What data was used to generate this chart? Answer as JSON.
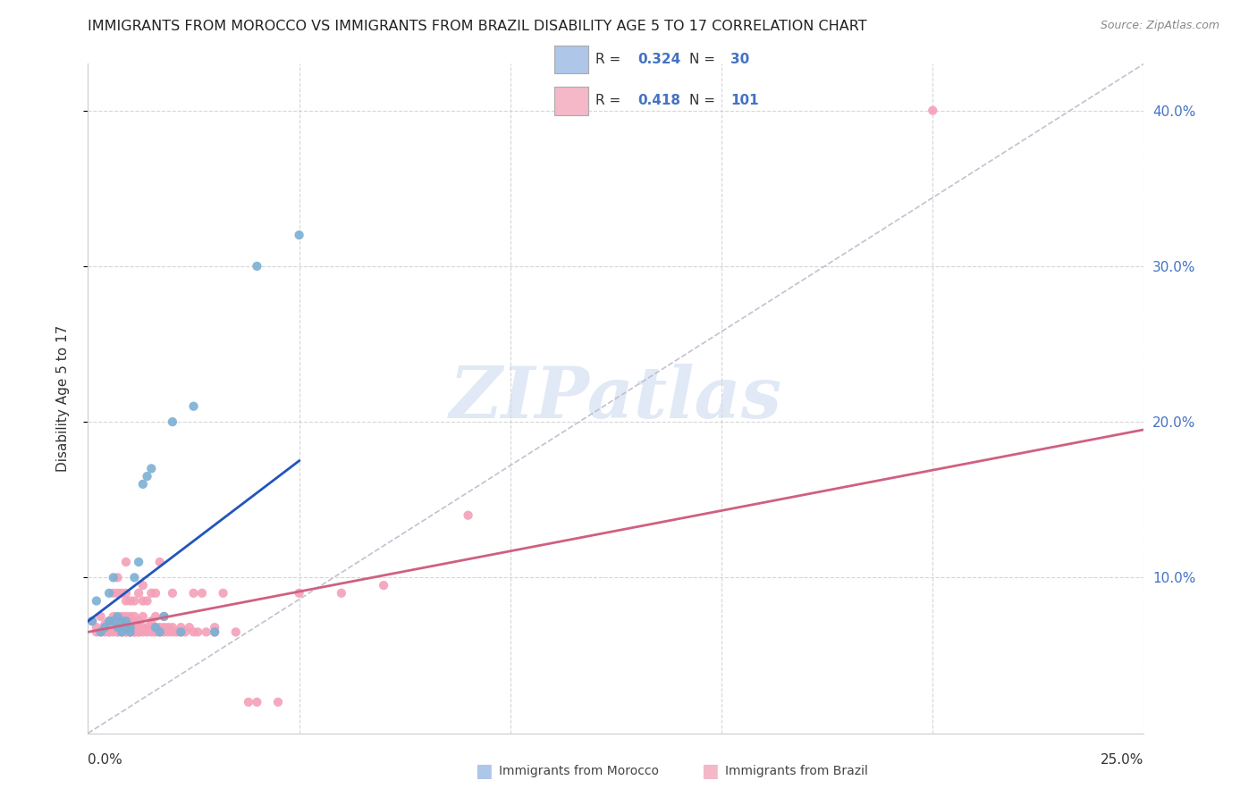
{
  "title": "IMMIGRANTS FROM MOROCCO VS IMMIGRANTS FROM BRAZIL DISABILITY AGE 5 TO 17 CORRELATION CHART",
  "source": "Source: ZipAtlas.com",
  "ylabel": "Disability Age 5 to 17",
  "watermark": "ZIPatlas",
  "morocco_color": "#7bafd4",
  "brazil_color": "#f4a0b8",
  "legend_morocco_color": "#aec6e8",
  "legend_brazil_color": "#f4b8c8",
  "regression_morocco_color": "#2255bb",
  "regression_brazil_color": "#d06080",
  "diagonal_color": "#bbbbcc",
  "R_morocco": 0.324,
  "N_morocco": 30,
  "R_brazil": 0.418,
  "N_brazil": 101,
  "xlim": [
    0.0,
    0.25
  ],
  "ylim": [
    0.0,
    0.43
  ],
  "yticks": [
    0.1,
    0.2,
    0.3,
    0.4
  ],
  "ytick_labels": [
    "10.0%",
    "20.0%",
    "30.0%",
    "40.0%"
  ],
  "morocco_reg_line": [
    [
      0.0,
      0.072
    ],
    [
      0.05,
      0.175
    ]
  ],
  "brazil_reg_line": [
    [
      0.0,
      0.065
    ],
    [
      0.25,
      0.195
    ]
  ],
  "diag_line": [
    [
      0.0,
      0.0
    ],
    [
      0.25,
      0.43
    ]
  ],
  "morocco_points": [
    [
      0.001,
      0.072
    ],
    [
      0.002,
      0.085
    ],
    [
      0.003,
      0.065
    ],
    [
      0.004,
      0.068
    ],
    [
      0.005,
      0.072
    ],
    [
      0.005,
      0.09
    ],
    [
      0.006,
      0.1
    ],
    [
      0.006,
      0.072
    ],
    [
      0.007,
      0.068
    ],
    [
      0.007,
      0.075
    ],
    [
      0.008,
      0.072
    ],
    [
      0.008,
      0.065
    ],
    [
      0.009,
      0.068
    ],
    [
      0.009,
      0.072
    ],
    [
      0.01,
      0.065
    ],
    [
      0.01,
      0.068
    ],
    [
      0.011,
      0.1
    ],
    [
      0.012,
      0.11
    ],
    [
      0.013,
      0.16
    ],
    [
      0.014,
      0.165
    ],
    [
      0.015,
      0.17
    ],
    [
      0.016,
      0.068
    ],
    [
      0.017,
      0.065
    ],
    [
      0.018,
      0.075
    ],
    [
      0.02,
      0.2
    ],
    [
      0.022,
      0.065
    ],
    [
      0.025,
      0.21
    ],
    [
      0.03,
      0.065
    ],
    [
      0.04,
      0.3
    ],
    [
      0.05,
      0.32
    ]
  ],
  "brazil_points": [
    [
      0.001,
      0.072
    ],
    [
      0.002,
      0.065
    ],
    [
      0.002,
      0.068
    ],
    [
      0.003,
      0.065
    ],
    [
      0.003,
      0.075
    ],
    [
      0.004,
      0.065
    ],
    [
      0.004,
      0.068
    ],
    [
      0.004,
      0.07
    ],
    [
      0.005,
      0.065
    ],
    [
      0.005,
      0.065
    ],
    [
      0.005,
      0.068
    ],
    [
      0.005,
      0.072
    ],
    [
      0.006,
      0.065
    ],
    [
      0.006,
      0.068
    ],
    [
      0.006,
      0.072
    ],
    [
      0.006,
      0.075
    ],
    [
      0.006,
      0.09
    ],
    [
      0.007,
      0.065
    ],
    [
      0.007,
      0.065
    ],
    [
      0.007,
      0.068
    ],
    [
      0.007,
      0.072
    ],
    [
      0.007,
      0.09
    ],
    [
      0.007,
      0.1
    ],
    [
      0.008,
      0.065
    ],
    [
      0.008,
      0.068
    ],
    [
      0.008,
      0.072
    ],
    [
      0.008,
      0.075
    ],
    [
      0.008,
      0.09
    ],
    [
      0.009,
      0.065
    ],
    [
      0.009,
      0.065
    ],
    [
      0.009,
      0.068
    ],
    [
      0.009,
      0.075
    ],
    [
      0.009,
      0.085
    ],
    [
      0.009,
      0.09
    ],
    [
      0.009,
      0.11
    ],
    [
      0.01,
      0.065
    ],
    [
      0.01,
      0.065
    ],
    [
      0.01,
      0.068
    ],
    [
      0.01,
      0.07
    ],
    [
      0.01,
      0.075
    ],
    [
      0.01,
      0.085
    ],
    [
      0.011,
      0.065
    ],
    [
      0.011,
      0.065
    ],
    [
      0.011,
      0.068
    ],
    [
      0.011,
      0.072
    ],
    [
      0.011,
      0.075
    ],
    [
      0.011,
      0.085
    ],
    [
      0.012,
      0.065
    ],
    [
      0.012,
      0.065
    ],
    [
      0.012,
      0.068
    ],
    [
      0.012,
      0.072
    ],
    [
      0.012,
      0.09
    ],
    [
      0.013,
      0.065
    ],
    [
      0.013,
      0.068
    ],
    [
      0.013,
      0.075
    ],
    [
      0.013,
      0.085
    ],
    [
      0.013,
      0.095
    ],
    [
      0.014,
      0.065
    ],
    [
      0.014,
      0.068
    ],
    [
      0.014,
      0.085
    ],
    [
      0.015,
      0.065
    ],
    [
      0.015,
      0.068
    ],
    [
      0.015,
      0.072
    ],
    [
      0.015,
      0.09
    ],
    [
      0.016,
      0.065
    ],
    [
      0.016,
      0.068
    ],
    [
      0.016,
      0.075
    ],
    [
      0.016,
      0.09
    ],
    [
      0.017,
      0.065
    ],
    [
      0.017,
      0.068
    ],
    [
      0.017,
      0.11
    ],
    [
      0.018,
      0.065
    ],
    [
      0.018,
      0.068
    ],
    [
      0.018,
      0.075
    ],
    [
      0.019,
      0.065
    ],
    [
      0.019,
      0.068
    ],
    [
      0.02,
      0.065
    ],
    [
      0.02,
      0.068
    ],
    [
      0.02,
      0.09
    ],
    [
      0.021,
      0.065
    ],
    [
      0.022,
      0.065
    ],
    [
      0.022,
      0.068
    ],
    [
      0.023,
      0.065
    ],
    [
      0.024,
      0.068
    ],
    [
      0.025,
      0.065
    ],
    [
      0.025,
      0.09
    ],
    [
      0.026,
      0.065
    ],
    [
      0.027,
      0.09
    ],
    [
      0.028,
      0.065
    ],
    [
      0.03,
      0.065
    ],
    [
      0.03,
      0.068
    ],
    [
      0.032,
      0.09
    ],
    [
      0.035,
      0.065
    ],
    [
      0.038,
      0.02
    ],
    [
      0.04,
      0.02
    ],
    [
      0.045,
      0.02
    ],
    [
      0.05,
      0.09
    ],
    [
      0.06,
      0.09
    ],
    [
      0.07,
      0.095
    ],
    [
      0.09,
      0.14
    ],
    [
      0.2,
      0.4
    ]
  ]
}
